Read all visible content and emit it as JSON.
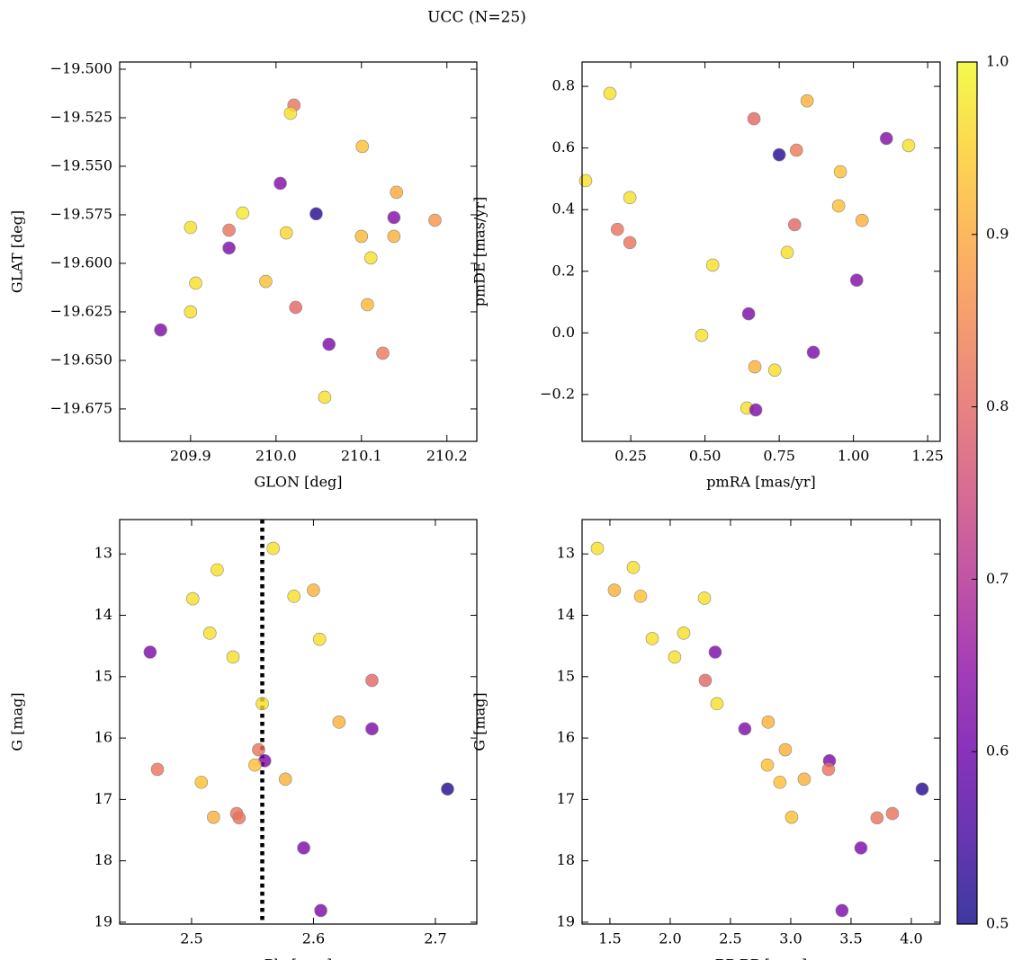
{
  "title": "UCC (N=25)",
  "colorbar": {
    "colormap": "plasma",
    "clim": [
      0.5,
      1.0
    ],
    "ticks": [
      0.5,
      0.6,
      0.7,
      0.8,
      0.9,
      {
        "value": 1.0,
        "label": "1.0"
      }
    ]
  },
  "chart_data": [
    {
      "type": "scatter",
      "xlabel": "GLON [deg]",
      "ylabel": "GLAT [deg]",
      "xlim": [
        209.817,
        210.235
      ],
      "ylim": [
        -19.6917,
        -19.4963
      ],
      "xticks": [
        209.9,
        {
          "value": 210.0,
          "label": "210.0"
        },
        210.1,
        210.2
      ],
      "yticks": [
        {
          "value": -19.5,
          "label": "−19.500"
        },
        {
          "value": -19.525,
          "label": "−19.525"
        },
        {
          "value": -19.55,
          "label": "−19.550"
        },
        {
          "value": -19.575,
          "label": "−19.575"
        },
        {
          "value": -19.6,
          "label": "−19.600"
        },
        {
          "value": -19.625,
          "label": "−19.625"
        },
        {
          "value": -19.65,
          "label": "−19.650"
        },
        {
          "value": -19.675,
          "label": "−19.675"
        }
      ],
      "x": [
        210.021,
        210.017,
        210.101,
        210.141,
        210.005,
        210.047,
        209.961,
        209.9,
        209.945,
        210.012,
        210.1,
        210.138,
        210.138,
        210.186,
        209.945,
        210.111,
        209.906,
        209.988,
        210.023,
        210.107,
        209.9,
        209.865,
        210.062,
        210.125,
        210.057
      ],
      "values": [
        -19.5185,
        -19.5227,
        -19.5398,
        -19.5634,
        -19.5588,
        -19.5745,
        -19.5741,
        -19.5815,
        -19.5829,
        -19.5843,
        -19.5861,
        -19.5861,
        -19.5764,
        -19.5778,
        -19.5921,
        -19.5972,
        -19.6102,
        -19.6093,
        -19.6227,
        -19.6213,
        -19.625,
        -19.6343,
        -19.6417,
        -19.6463,
        -19.669
      ],
      "c": [
        0.82,
        0.97,
        0.93,
        0.9,
        0.63,
        0.52,
        0.98,
        0.97,
        0.82,
        0.96,
        0.92,
        0.91,
        0.63,
        0.87,
        0.62,
        0.97,
        0.97,
        0.93,
        0.8,
        0.92,
        0.97,
        0.62,
        0.62,
        0.83,
        0.97
      ]
    },
    {
      "type": "scatter",
      "xlabel": "pmRA [mas/yr]",
      "ylabel": "pmDE [mas/yr]",
      "xlim": [
        0.086,
        1.292
      ],
      "ylim": [
        -0.352,
        0.879
      ],
      "xticks": [
        0.25,
        {
          "value": 0.5,
          "label": "0.50"
        },
        0.75,
        {
          "value": 1.0,
          "label": "1.00"
        },
        1.25
      ],
      "yticks": [
        {
          "value": -0.2,
          "label": "−0.2"
        },
        {
          "value": 0.0,
          "label": "0.0"
        },
        0.2,
        0.4,
        0.6,
        0.8
      ],
      "x": [
        0.18,
        0.844,
        0.665,
        1.186,
        1.111,
        0.808,
        0.75,
        0.956,
        0.098,
        0.247,
        0.95,
        1.029,
        0.205,
        0.802,
        0.247,
        0.777,
        0.526,
        1.011,
        0.647,
        0.489,
        0.865,
        0.668,
        0.735,
        0.641,
        0.671
      ],
      "values": [
        0.777,
        0.753,
        0.695,
        0.608,
        0.631,
        0.593,
        0.578,
        0.523,
        0.494,
        0.439,
        0.412,
        0.365,
        0.336,
        0.351,
        0.293,
        0.261,
        0.22,
        0.171,
        0.062,
        -0.008,
        -0.063,
        -0.11,
        -0.121,
        -0.244,
        -0.25
      ],
      "c": [
        0.97,
        0.91,
        0.8,
        0.97,
        0.63,
        0.83,
        0.52,
        0.93,
        0.97,
        0.97,
        0.93,
        0.91,
        0.82,
        0.8,
        0.82,
        0.97,
        0.97,
        0.63,
        0.62,
        0.97,
        0.62,
        0.91,
        0.97,
        0.97,
        0.62
      ]
    },
    {
      "type": "scatter",
      "xlabel": "Plx [mas]",
      "ylabel": "G [mag]",
      "xlim": [
        2.441,
        2.734
      ],
      "ylim": [
        19.03,
        12.44
      ],
      "vline": 2.558,
      "xticks": [
        2.5,
        2.6,
        2.7
      ],
      "yticks": [
        13,
        14,
        15,
        16,
        17,
        18,
        19
      ],
      "x": [
        2.567,
        2.521,
        2.6,
        2.501,
        2.584,
        2.515,
        2.605,
        2.534,
        2.466,
        2.648,
        2.558,
        2.621,
        2.648,
        2.555,
        2.56,
        2.552,
        2.472,
        2.508,
        2.577,
        2.71,
        2.518,
        2.537,
        2.539,
        2.592,
        2.606
      ],
      "values": [
        12.91,
        13.26,
        13.59,
        13.73,
        13.69,
        14.29,
        14.39,
        14.68,
        14.6,
        15.06,
        15.44,
        15.74,
        15.85,
        16.19,
        16.37,
        16.44,
        16.51,
        16.72,
        16.67,
        16.83,
        17.29,
        17.23,
        17.3,
        17.79,
        18.81
      ],
      "c": [
        0.97,
        0.97,
        0.91,
        0.97,
        0.97,
        0.97,
        0.97,
        0.97,
        0.62,
        0.8,
        0.97,
        0.91,
        0.62,
        0.82,
        0.62,
        0.93,
        0.82,
        0.93,
        0.91,
        0.52,
        0.91,
        0.82,
        0.82,
        0.62,
        0.62
      ]
    },
    {
      "type": "scatter",
      "xlabel": "BP-RP [mag]",
      "ylabel": "G [mag]",
      "xlim": [
        1.269,
        4.239
      ],
      "ylim": [
        19.03,
        12.44
      ],
      "xticks": [
        1.5,
        {
          "value": 2.0,
          "label": "2.0"
        },
        2.5,
        {
          "value": 3.0,
          "label": "3.0"
        },
        3.5,
        {
          "value": 4.0,
          "label": "4.0"
        }
      ],
      "yticks": [
        13,
        14,
        15,
        16,
        17,
        18,
        19
      ],
      "x": [
        1.396,
        1.694,
        1.537,
        1.754,
        2.284,
        1.851,
        2.112,
        2.037,
        2.373,
        2.291,
        2.388,
        2.813,
        2.619,
        2.955,
        3.321,
        2.806,
        3.313,
        2.91,
        3.112,
        4.09,
        3.007,
        3.843,
        3.716,
        3.582,
        3.425
      ],
      "values": [
        12.91,
        13.22,
        13.59,
        13.69,
        13.72,
        14.38,
        14.29,
        14.68,
        14.6,
        15.06,
        15.44,
        15.74,
        15.85,
        16.19,
        16.37,
        16.44,
        16.51,
        16.72,
        16.67,
        16.83,
        17.29,
        17.23,
        17.3,
        17.79,
        18.81
      ],
      "c": [
        0.97,
        0.97,
        0.91,
        0.93,
        0.97,
        0.97,
        0.97,
        0.97,
        0.62,
        0.8,
        0.97,
        0.91,
        0.62,
        0.91,
        0.62,
        0.93,
        0.82,
        0.93,
        0.91,
        0.52,
        0.93,
        0.82,
        0.82,
        0.62,
        0.62
      ]
    }
  ]
}
